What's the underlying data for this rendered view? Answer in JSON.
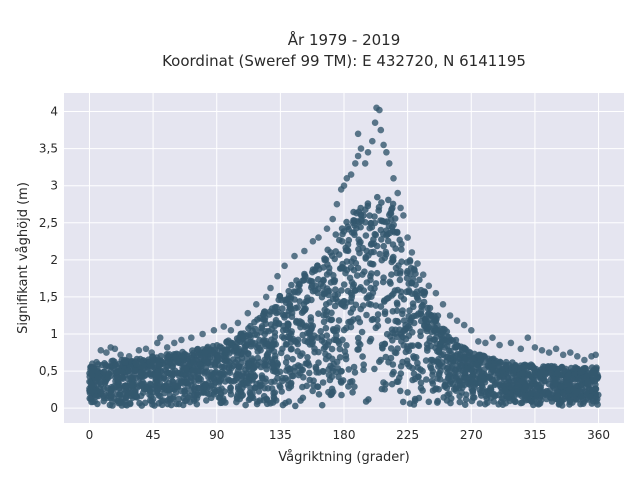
{
  "chart_data": {
    "type": "scatter",
    "title": "År 1979 - 2019",
    "subtitle": "Koordinat (Sweref 99 TM): E 432720, N 6141195",
    "xlabel": "Vågriktning (grader)",
    "ylabel": "Signifikant våghöjd (m)",
    "xlim": [
      -18,
      378
    ],
    "ylim": [
      -0.2,
      4.25
    ],
    "xticks": [
      0,
      45,
      90,
      135,
      180,
      225,
      270,
      315,
      360
    ],
    "xtick_labels": [
      "0",
      "45",
      "90",
      "135",
      "180",
      "225",
      "270",
      "315",
      "360"
    ],
    "yticks": [
      0,
      0.5,
      1,
      1.5,
      2,
      2.5,
      3,
      3.5,
      4
    ],
    "ytick_labels": [
      "0",
      "0,5",
      "1",
      "1,5",
      "2",
      "2,5",
      "3",
      "3,5",
      "4"
    ],
    "grid": true,
    "colors": {
      "marker": "#34586e",
      "plot_bg": "#e5e5f0",
      "grid": "#ffffff"
    },
    "envelope": {
      "direction": [
        0,
        10,
        20,
        30,
        45,
        60,
        75,
        90,
        100,
        110,
        120,
        135,
        150,
        160,
        170,
        180,
        190,
        200,
        205,
        210,
        215,
        220,
        225,
        235,
        245,
        255,
        270,
        290,
        315,
        340,
        360
      ],
      "max_height": [
        0.55,
        0.62,
        0.65,
        0.65,
        0.7,
        0.75,
        0.8,
        0.85,
        0.95,
        1.05,
        1.25,
        1.55,
        1.8,
        1.95,
        2.2,
        2.55,
        2.7,
        2.85,
        2.95,
        2.9,
        2.75,
        2.45,
        2.1,
        1.7,
        1.3,
        1.0,
        0.75,
        0.65,
        0.58,
        0.55,
        0.55
      ]
    },
    "outliers": [
      [
        2,
        0.6
      ],
      [
        5,
        0.62
      ],
      [
        8,
        0.78
      ],
      [
        12,
        0.75
      ],
      [
        15,
        0.82
      ],
      [
        18,
        0.8
      ],
      [
        22,
        0.72
      ],
      [
        28,
        0.7
      ],
      [
        35,
        0.78
      ],
      [
        40,
        0.8
      ],
      [
        44,
        0.75
      ],
      [
        48,
        0.88
      ],
      [
        50,
        0.95
      ],
      [
        55,
        0.82
      ],
      [
        60,
        0.88
      ],
      [
        65,
        0.92
      ],
      [
        72,
        0.95
      ],
      [
        80,
        1.0
      ],
      [
        88,
        1.05
      ],
      [
        95,
        1.1
      ],
      [
        100,
        1.05
      ],
      [
        105,
        1.15
      ],
      [
        112,
        1.28
      ],
      [
        118,
        1.4
      ],
      [
        125,
        1.5
      ],
      [
        128,
        1.62
      ],
      [
        133,
        1.78
      ],
      [
        138,
        1.92
      ],
      [
        145,
        2.05
      ],
      [
        152,
        2.12
      ],
      [
        158,
        2.25
      ],
      [
        162,
        2.3
      ],
      [
        168,
        2.42
      ],
      [
        172,
        2.55
      ],
      [
        175,
        2.75
      ],
      [
        178,
        2.95
      ],
      [
        180,
        3.0
      ],
      [
        182,
        3.1
      ],
      [
        185,
        3.15
      ],
      [
        188,
        3.3
      ],
      [
        190,
        3.4
      ],
      [
        190,
        3.7
      ],
      [
        192,
        3.5
      ],
      [
        195,
        3.3
      ],
      [
        197,
        3.45
      ],
      [
        200,
        3.6
      ],
      [
        202,
        3.85
      ],
      [
        203,
        4.05
      ],
      [
        205,
        4.02
      ],
      [
        206,
        3.75
      ],
      [
        208,
        3.55
      ],
      [
        210,
        3.45
      ],
      [
        212,
        3.3
      ],
      [
        215,
        3.1
      ],
      [
        218,
        2.9
      ],
      [
        220,
        2.7
      ],
      [
        222,
        2.6
      ],
      [
        225,
        2.3
      ],
      [
        228,
        2.1
      ],
      [
        232,
        1.95
      ],
      [
        236,
        1.8
      ],
      [
        240,
        1.65
      ],
      [
        245,
        1.55
      ],
      [
        250,
        1.4
      ],
      [
        255,
        1.25
      ],
      [
        260,
        1.18
      ],
      [
        265,
        1.12
      ],
      [
        270,
        1.05
      ],
      [
        275,
        0.9
      ],
      [
        280,
        0.88
      ],
      [
        285,
        0.95
      ],
      [
        290,
        0.85
      ],
      [
        298,
        0.88
      ],
      [
        305,
        0.8
      ],
      [
        310,
        0.95
      ],
      [
        315,
        0.82
      ],
      [
        320,
        0.78
      ],
      [
        325,
        0.75
      ],
      [
        330,
        0.8
      ],
      [
        335,
        0.72
      ],
      [
        340,
        0.75
      ],
      [
        345,
        0.7
      ],
      [
        350,
        0.65
      ],
      [
        355,
        0.7
      ],
      [
        358,
        0.72
      ]
    ],
    "seed": 1979
  }
}
